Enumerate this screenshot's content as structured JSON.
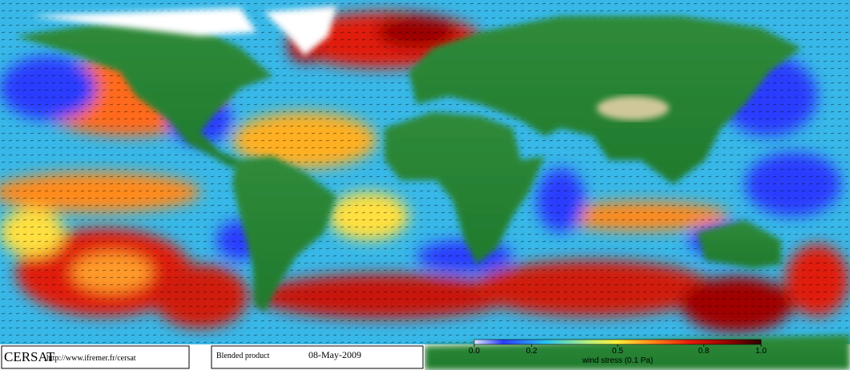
{
  "header": {
    "logo": "CERSAT",
    "url": "http://www.ifremer.fr/cersat",
    "product": "Blended product",
    "date": "08-May-2009"
  },
  "colorbar": {
    "label": "wind stress (0.1 Pa)",
    "range": [
      0,
      1
    ],
    "ticks": [
      {
        "value": 0,
        "label": "0.0"
      },
      0.2,
      0.5,
      0.8,
      {
        "value": 1,
        "label": "1.0"
      }
    ]
  }
}
